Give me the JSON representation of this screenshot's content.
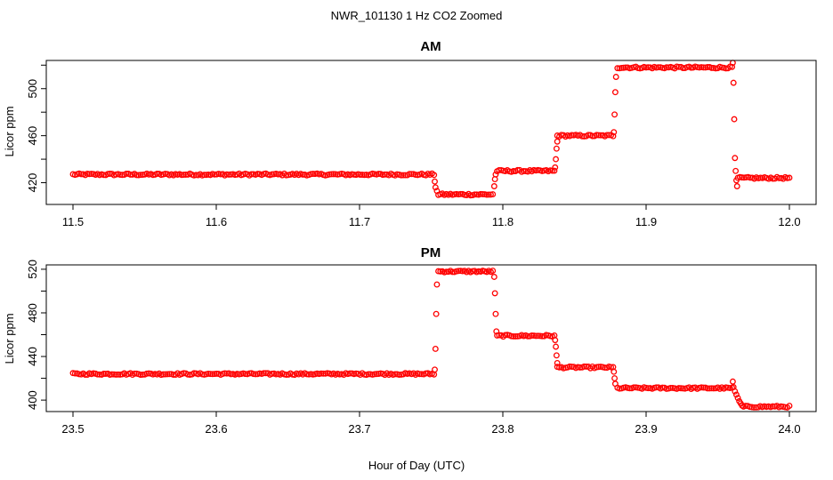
{
  "figure_title": "NWR_101130  1 Hz CO2 Zoomed",
  "x_label": "Hour of Day (UTC)",
  "colors": {
    "points": "#ff0000",
    "axes": "#000000",
    "background": "#ffffff"
  },
  "chart_data": [
    {
      "type": "scatter",
      "title": "AM",
      "xlabel": "",
      "ylabel": "Licor ppm",
      "xlim": [
        11.5,
        12.0
      ],
      "ylim": [
        401.5,
        524
      ],
      "x_ticks": [
        "11.5",
        "11.6",
        "11.7",
        "11.8",
        "11.9",
        "12.0"
      ],
      "y_ticks": [
        "420",
        "460",
        "500"
      ],
      "grid": false,
      "segments": [
        {
          "x_start": 11.5,
          "x_end": 11.752,
          "y": 427
        },
        {
          "x_start": 11.755,
          "x_end": 11.793,
          "y": 410
        },
        {
          "x_start": 11.796,
          "x_end": 11.836,
          "y": 430
        },
        {
          "x_start": 11.838,
          "x_end": 11.877,
          "y": 460
        },
        {
          "x_start": 11.88,
          "x_end": 11.96,
          "y": 518
        },
        {
          "x_start": 11.964,
          "x_end": 12.0,
          "y": 424
        }
      ],
      "transitions": [
        {
          "x": 11.7525,
          "y": 421
        },
        {
          "x": 11.753,
          "y": 416
        },
        {
          "x": 11.754,
          "y": 413
        },
        {
          "x": 11.794,
          "y": 417
        },
        {
          "x": 11.7945,
          "y": 423
        },
        {
          "x": 11.795,
          "y": 427
        },
        {
          "x": 11.8365,
          "y": 433
        },
        {
          "x": 11.837,
          "y": 440
        },
        {
          "x": 11.8375,
          "y": 449
        },
        {
          "x": 11.838,
          "y": 455
        },
        {
          "x": 11.8775,
          "y": 463
        },
        {
          "x": 11.878,
          "y": 478
        },
        {
          "x": 11.8785,
          "y": 497
        },
        {
          "x": 11.879,
          "y": 510
        },
        {
          "x": 11.9605,
          "y": 522
        },
        {
          "x": 11.961,
          "y": 505
        },
        {
          "x": 11.9615,
          "y": 474
        },
        {
          "x": 11.962,
          "y": 441
        },
        {
          "x": 11.9625,
          "y": 430
        },
        {
          "x": 11.963,
          "y": 422
        },
        {
          "x": 11.9635,
          "y": 417
        }
      ]
    },
    {
      "type": "scatter",
      "title": "PM",
      "xlabel": "",
      "ylabel": "Licor ppm",
      "xlim": [
        23.5,
        24.0
      ],
      "ylim": [
        389.5,
        524
      ],
      "x_ticks": [
        "23.5",
        "23.6",
        "23.7",
        "23.8",
        "23.9",
        "24.0"
      ],
      "y_ticks": [
        "400",
        "440",
        "480",
        "520"
      ],
      "grid": false,
      "segments": [
        {
          "x_start": 23.5,
          "x_end": 23.752,
          "y": 424
        },
        {
          "x_start": 23.755,
          "x_end": 23.793,
          "y": 518
        },
        {
          "x_start": 23.796,
          "x_end": 23.836,
          "y": 459
        },
        {
          "x_start": 23.838,
          "x_end": 23.877,
          "y": 430
        },
        {
          "x_start": 23.88,
          "x_end": 23.96,
          "y": 411
        },
        {
          "x_start": 23.968,
          "x_end": 24.0,
          "y": 394
        }
      ],
      "transitions": [
        {
          "x": 23.7525,
          "y": 428
        },
        {
          "x": 23.753,
          "y": 447
        },
        {
          "x": 23.7535,
          "y": 479
        },
        {
          "x": 23.754,
          "y": 506
        },
        {
          "x": 23.794,
          "y": 513
        },
        {
          "x": 23.7945,
          "y": 498
        },
        {
          "x": 23.795,
          "y": 479
        },
        {
          "x": 23.7955,
          "y": 463
        },
        {
          "x": 23.8365,
          "y": 455
        },
        {
          "x": 23.837,
          "y": 449
        },
        {
          "x": 23.8375,
          "y": 441
        },
        {
          "x": 23.838,
          "y": 434
        },
        {
          "x": 23.8775,
          "y": 426
        },
        {
          "x": 23.878,
          "y": 420
        },
        {
          "x": 23.8785,
          "y": 415
        },
        {
          "x": 23.9605,
          "y": 417
        },
        {
          "x": 23.961,
          "y": 412
        },
        {
          "x": 23.962,
          "y": 408
        },
        {
          "x": 23.963,
          "y": 405
        },
        {
          "x": 23.964,
          "y": 402
        },
        {
          "x": 23.965,
          "y": 399
        },
        {
          "x": 23.966,
          "y": 397
        },
        {
          "x": 23.967,
          "y": 395
        }
      ]
    }
  ]
}
